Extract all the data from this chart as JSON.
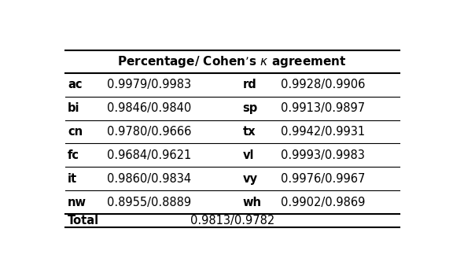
{
  "header_col": "Percentage/ Cohen’s κ agreement",
  "rows": [
    [
      "ac",
      "0.9979/0.9983",
      "rd",
      "0.9928/0.9906"
    ],
    [
      "bi",
      "0.9846/0.9840",
      "sp",
      "0.9913/0.9897"
    ],
    [
      "cn",
      "0.9780/0.9666",
      "tx",
      "0.9942/0.9931"
    ],
    [
      "fc",
      "0.9684/0.9621",
      "vl",
      "0.9993/0.9983"
    ],
    [
      "it",
      "0.9860/0.9834",
      "vy",
      "0.9976/0.9967"
    ],
    [
      "nw",
      "0.8955/0.8889",
      "wh",
      "0.9902/0.9869"
    ]
  ],
  "total_label": "Total",
  "total_value": "0.9813/0.9782",
  "background": "#ffffff",
  "text_color": "#000000",
  "fontsize": 10.5
}
